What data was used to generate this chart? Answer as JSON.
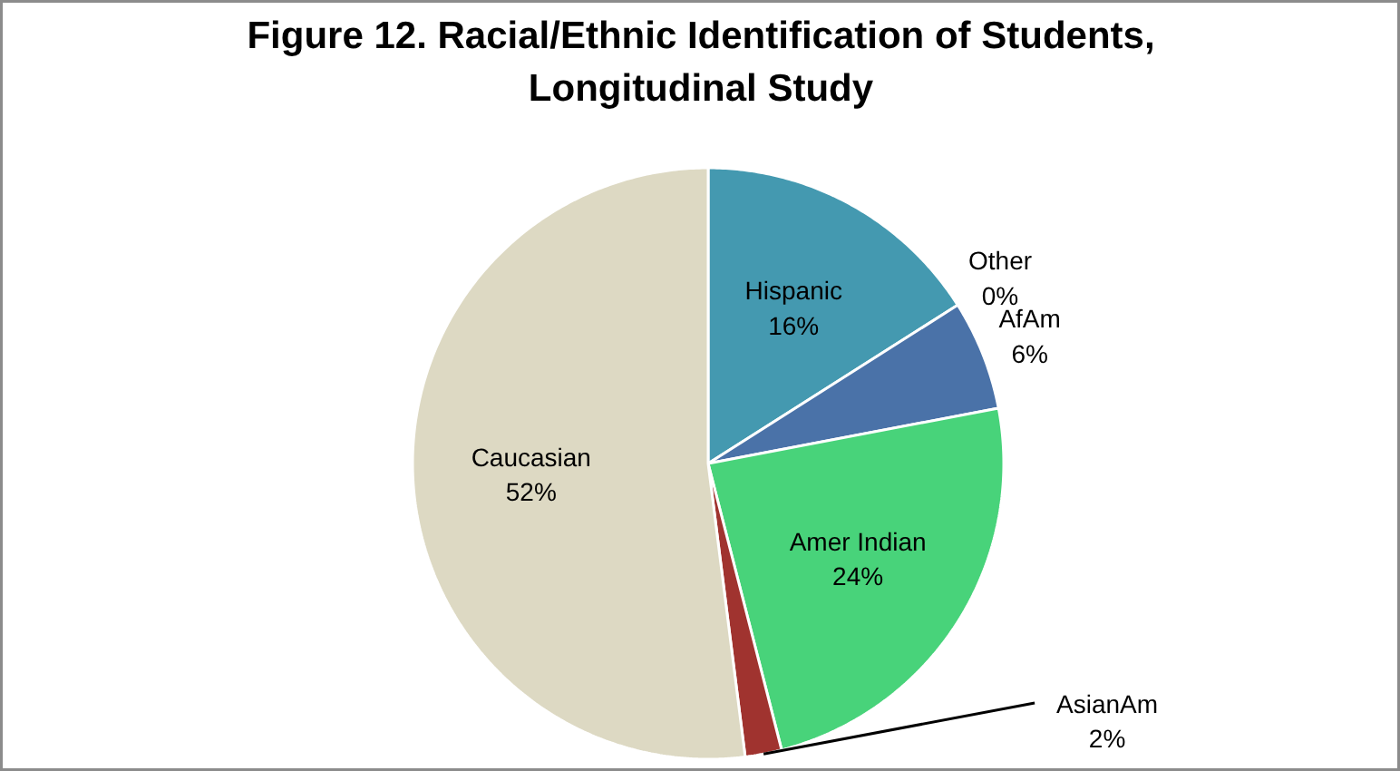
{
  "chart_data": {
    "type": "pie",
    "title": "Figure 12. Racial/Ethnic Identification of Students,\nLongitudinal Study",
    "categories": [
      "Hispanic",
      "Other",
      "AfAm",
      "Amer Indian",
      "AsianAm",
      "Caucasian"
    ],
    "values": [
      16,
      0,
      6,
      24,
      2,
      52
    ],
    "value_labels": [
      "16%",
      "0%",
      "6%",
      "24%",
      "2%",
      "52%"
    ],
    "colors": [
      "#4499b0",
      "#ffffff",
      "#4a72a8",
      "#48d37a",
      "#a0332f",
      "#ddd9c3"
    ]
  }
}
